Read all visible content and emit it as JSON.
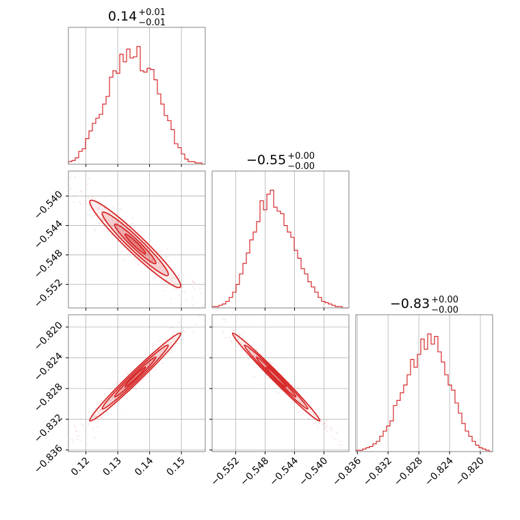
{
  "chart_data": {
    "type": "corner",
    "color": "#d62728",
    "grid": true,
    "parameters": [
      {
        "range": [
          0.1145,
          0.1575
        ],
        "ticks": [
          0.12,
          0.13,
          0.14,
          0.15
        ],
        "tick_labels": [
          "0.12",
          "0.13",
          "0.14",
          "0.15"
        ],
        "title": {
          "main": "0.14",
          "sup": "+0.01",
          "sub": "−0.01"
        },
        "mean": 0.1355,
        "sd": 0.0065
      },
      {
        "range": [
          -0.5552,
          -0.5366
        ],
        "ticks": [
          -0.552,
          -0.548,
          -0.544,
          -0.54
        ],
        "tick_labels": [
          "−0.552",
          "−0.548",
          "−0.544",
          "−0.540"
        ],
        "title": {
          "main": "−0.55",
          "sup": "+0.00",
          "sub": "−0.00"
        },
        "mean": -0.5465,
        "sd": 0.0027
      },
      {
        "range": [
          -0.8362,
          -0.8184
        ],
        "ticks": [
          -0.836,
          -0.832,
          -0.828,
          -0.824,
          -0.82
        ],
        "tick_labels": [
          "−0.836",
          "−0.832",
          "−0.828",
          "−0.824",
          "−0.820"
        ],
        "title": {
          "main": "−0.83",
          "sup": "+0.00",
          "sub": "−0.00"
        },
        "mean": -0.8265,
        "sd": 0.0026
      }
    ],
    "histograms": [
      {
        "param": 0,
        "counts": [
          2,
          3,
          5,
          10,
          12,
          20,
          26,
          32,
          36,
          39,
          47,
          53,
          68,
          73,
          71,
          86,
          80,
          90,
          83,
          84,
          92,
          73,
          72,
          75,
          74,
          66,
          55,
          47,
          38,
          34,
          27,
          16,
          13,
          8,
          4,
          2,
          2,
          1,
          1,
          0
        ]
      },
      {
        "param": 1,
        "counts": [
          1,
          1,
          2,
          3,
          5,
          8,
          12,
          18,
          26,
          34,
          42,
          52,
          58,
          66,
          82,
          75,
          87,
          90,
          77,
          74,
          72,
          63,
          58,
          54,
          44,
          38,
          30,
          26,
          20,
          16,
          12,
          8,
          5,
          4,
          3,
          2,
          1,
          1,
          0,
          0
        ]
      },
      {
        "param": 2,
        "counts": [
          1,
          1,
          2,
          3,
          4,
          6,
          8,
          12,
          16,
          20,
          24,
          36,
          40,
          46,
          52,
          60,
          72,
          66,
          76,
          88,
          80,
          92,
          84,
          90,
          78,
          70,
          60,
          52,
          48,
          38,
          30,
          22,
          16,
          12,
          8,
          5,
          3,
          2,
          1,
          0
        ]
      }
    ],
    "pair_correlations": [
      {
        "x": 0,
        "y": 1,
        "rho": -0.96
      },
      {
        "x": 0,
        "y": 2,
        "rho": 0.985
      },
      {
        "x": 1,
        "y": 2,
        "rho": -0.99
      }
    ]
  }
}
